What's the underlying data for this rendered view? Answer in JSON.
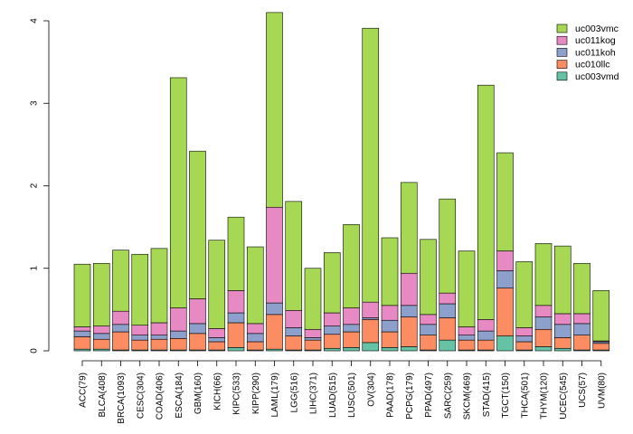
{
  "chart_data": {
    "type": "bar",
    "stacked": true,
    "title": "",
    "xlabel": "",
    "ylabel": "",
    "ylim": [
      0,
      4.2
    ],
    "yticks": [
      0,
      1,
      2,
      3,
      4
    ],
    "legend_position": "top-right",
    "categories": [
      "ACC(79)",
      "BLCA(408)",
      "BRCA(1093)",
      "CESC(304)",
      "COAD(406)",
      "ESCA(184)",
      "GBM(160)",
      "KICH(66)",
      "KIPC(533)",
      "KIPP(290)",
      "LAML(179)",
      "LGG(516)",
      "LIHC(371)",
      "LUAD(515)",
      "LUSC(501)",
      "OV(304)",
      "PAAD(178)",
      "PCPG(179)",
      "PPAD(497)",
      "SARC(259)",
      "SKCM(469)",
      "STAD(415)",
      "TGCT(150)",
      "THCA(501)",
      "THYM(120)",
      "UCEC(545)",
      "UCS(57)",
      "UVM(80)"
    ],
    "series": [
      {
        "name": "uc003vmd",
        "color": "#66c2a5",
        "values": [
          0.02,
          0.02,
          0.01,
          0.01,
          0.01,
          0.01,
          0.01,
          0.01,
          0.04,
          0.01,
          0.02,
          0.01,
          0.01,
          0.03,
          0.04,
          0.1,
          0.04,
          0.05,
          0.01,
          0.13,
          0.01,
          0.01,
          0.18,
          0.01,
          0.05,
          0.03,
          0.01,
          0.01
        ]
      },
      {
        "name": "uc010llc",
        "color": "#fc8d62",
        "values": [
          0.15,
          0.12,
          0.22,
          0.12,
          0.13,
          0.14,
          0.2,
          0.1,
          0.3,
          0.1,
          0.42,
          0.17,
          0.12,
          0.17,
          0.19,
          0.28,
          0.19,
          0.36,
          0.18,
          0.27,
          0.12,
          0.12,
          0.58,
          0.1,
          0.21,
          0.13,
          0.18,
          0.08
        ]
      },
      {
        "name": "uc011koh",
        "color": "#8da0cb",
        "values": [
          0.07,
          0.07,
          0.09,
          0.06,
          0.05,
          0.09,
          0.12,
          0.05,
          0.12,
          0.1,
          0.14,
          0.1,
          0.03,
          0.1,
          0.09,
          0.02,
          0.14,
          0.14,
          0.13,
          0.17,
          0.06,
          0.11,
          0.21,
          0.07,
          0.15,
          0.16,
          0.14,
          0.02
        ]
      },
      {
        "name": "uc011kog",
        "color": "#e78ac3",
        "values": [
          0.05,
          0.09,
          0.16,
          0.12,
          0.15,
          0.28,
          0.3,
          0.11,
          0.27,
          0.12,
          1.16,
          0.21,
          0.1,
          0.16,
          0.2,
          0.19,
          0.18,
          0.39,
          0.12,
          0.13,
          0.1,
          0.14,
          0.24,
          0.1,
          0.14,
          0.13,
          0.12,
          0.01
        ]
      },
      {
        "name": "uc003vmc",
        "color": "#a6d854",
        "values": [
          0.76,
          0.76,
          0.74,
          0.86,
          0.9,
          2.79,
          1.79,
          1.07,
          0.89,
          0.93,
          2.36,
          1.32,
          0.74,
          0.73,
          1.01,
          3.32,
          0.82,
          1.1,
          0.91,
          1.14,
          0.92,
          2.84,
          1.19,
          0.8,
          0.75,
          0.82,
          0.61,
          0.61
        ]
      }
    ]
  }
}
